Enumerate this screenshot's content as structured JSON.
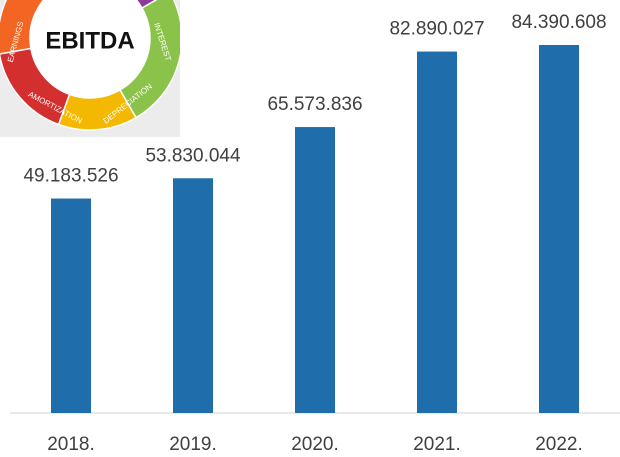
{
  "logo": {
    "title": "EBITDA",
    "segments": [
      "EARNINGS",
      "INTEREST",
      "DEPRECIATION",
      "AMORTIZATION"
    ]
  },
  "chart_data": {
    "type": "bar",
    "categories": [
      "2018.",
      "2019.",
      "2020.",
      "2021.",
      "2022."
    ],
    "values": [
      49183526,
      53830044,
      65573836,
      82890027,
      84390608
    ],
    "value_labels": [
      "49.183.526",
      "53.830.044",
      "65.573.836",
      "82.890.027",
      "84.390.608"
    ],
    "color": "#1f6eab"
  }
}
